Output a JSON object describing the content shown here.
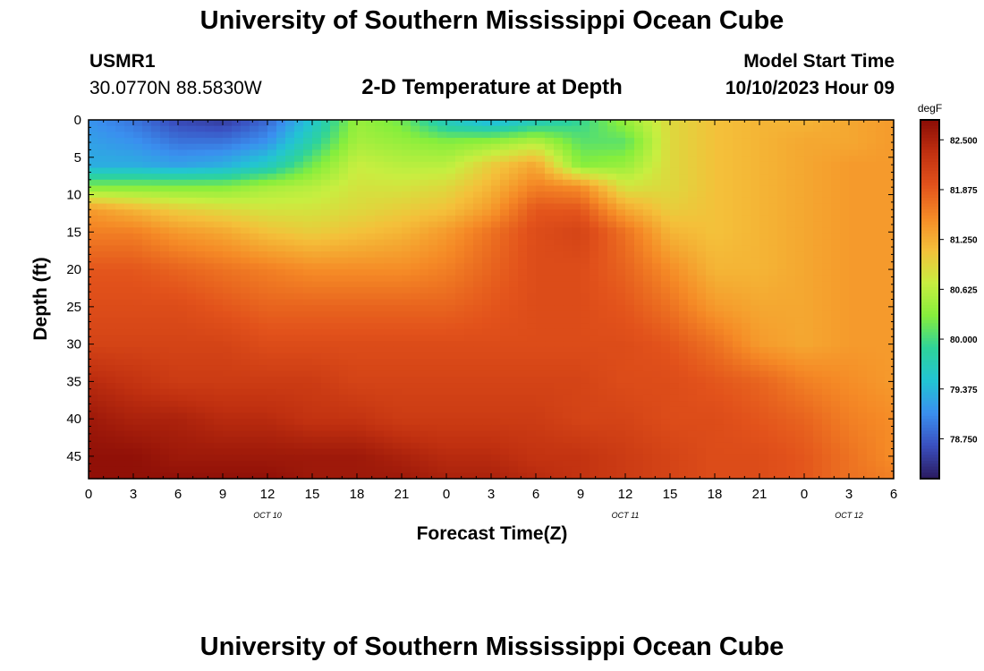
{
  "page": {
    "title": "University of Southern Mississippi Ocean Cube",
    "bottom_title": "University of Southern Mississippi Ocean Cube"
  },
  "header": {
    "station_id": "USMR1",
    "coordinates": "30.0770N  88.5830W",
    "subtitle": "2-D Temperature at Depth",
    "model_start_label": "Model Start Time",
    "model_start_value": "10/10/2023 Hour 09"
  },
  "chart_data": {
    "type": "heatmap",
    "title": "2-D Temperature at Depth",
    "xlabel": "Forecast Time(Z)",
    "ylabel": "Depth (ft)",
    "x_tick_labels": [
      "0",
      "3",
      "6",
      "9",
      "12",
      "15",
      "18",
      "21",
      "0",
      "3",
      "6",
      "9",
      "12",
      "15",
      "18",
      "21",
      "0",
      "3",
      "6"
    ],
    "x_hours": [
      0,
      3,
      6,
      9,
      12,
      15,
      18,
      21,
      24,
      27,
      30,
      33,
      36,
      39,
      42,
      45,
      48,
      51,
      54
    ],
    "date_labels": [
      {
        "text": "OCT 10",
        "hour": 12
      },
      {
        "text": "OCT 11",
        "hour": 36
      },
      {
        "text": "OCT 12",
        "hour": 51
      }
    ],
    "y_ticks": [
      0,
      5,
      10,
      15,
      20,
      25,
      30,
      35,
      40,
      45
    ],
    "ylim": [
      0,
      48
    ],
    "xlim": [
      0,
      54
    ],
    "colorbar": {
      "unit": "degF",
      "min": 78.25,
      "max": 82.75,
      "tick_values": [
        82.5,
        81.875,
        81.25,
        80.625,
        80.0,
        79.375,
        78.75
      ],
      "tick_labels": [
        "82.500",
        "81.875",
        "81.250",
        "80.625",
        "80.000",
        "79.375",
        "78.750"
      ],
      "colors": [
        "#2a1a5e",
        "#3a4fbf",
        "#3a8fef",
        "#22c4d4",
        "#2ed39a",
        "#86ee3c",
        "#c8ee40",
        "#f4c03a",
        "#f58a26",
        "#e2521b",
        "#c03010",
        "#8a0c06"
      ]
    },
    "temperature_grid": {
      "x_hours": [
        0,
        3,
        6,
        9,
        12,
        15,
        18,
        21,
        24,
        27,
        30,
        33,
        36,
        39,
        42,
        45,
        48,
        51,
        54
      ],
      "depths_ft": [
        0,
        3,
        6,
        9,
        12,
        15,
        20,
        25,
        30,
        35,
        40,
        45,
        48
      ],
      "values_degF": [
        [
          79.1,
          78.9,
          78.6,
          78.5,
          78.8,
          79.5,
          80.4,
          80.2,
          79.6,
          79.3,
          79.6,
          79.9,
          80.4,
          80.9,
          81.1,
          81.2,
          81.2,
          81.3,
          81.4
        ],
        [
          79.2,
          79.1,
          78.9,
          78.9,
          79.1,
          79.8,
          80.5,
          80.4,
          80.3,
          80.4,
          80.6,
          80.1,
          80.1,
          80.9,
          81.1,
          81.2,
          81.3,
          81.3,
          81.4
        ],
        [
          79.3,
          79.3,
          79.2,
          79.3,
          79.6,
          80.2,
          80.7,
          80.6,
          80.6,
          81.0,
          81.3,
          80.3,
          80.4,
          80.9,
          81.1,
          81.2,
          81.3,
          81.4,
          81.4
        ],
        [
          80.3,
          80.3,
          80.3,
          80.3,
          80.5,
          80.6,
          80.8,
          80.8,
          80.9,
          81.2,
          81.6,
          81.5,
          80.8,
          80.9,
          81.1,
          81.2,
          81.3,
          81.4,
          81.4
        ],
        [
          81.4,
          81.2,
          81.0,
          80.9,
          80.8,
          80.8,
          80.9,
          81.0,
          81.1,
          81.4,
          81.9,
          81.9,
          81.3,
          81.0,
          81.1,
          81.2,
          81.3,
          81.4,
          81.4
        ],
        [
          81.6,
          81.6,
          81.4,
          81.3,
          81.1,
          81.0,
          81.1,
          81.2,
          81.4,
          81.7,
          82.0,
          82.1,
          81.7,
          81.2,
          81.1,
          81.2,
          81.3,
          81.4,
          81.4
        ],
        [
          81.9,
          81.9,
          81.8,
          81.7,
          81.6,
          81.5,
          81.5,
          81.5,
          81.6,
          81.8,
          82.0,
          82.0,
          81.8,
          81.5,
          81.2,
          81.2,
          81.3,
          81.4,
          81.4
        ],
        [
          82.0,
          82.0,
          82.0,
          81.9,
          81.8,
          81.8,
          81.8,
          81.8,
          81.8,
          81.9,
          82.0,
          82.0,
          81.9,
          81.7,
          81.4,
          81.3,
          81.3,
          81.4,
          81.4
        ],
        [
          82.1,
          82.1,
          82.1,
          82.1,
          82.0,
          82.0,
          82.0,
          82.0,
          82.0,
          82.0,
          82.0,
          82.0,
          82.0,
          81.9,
          81.7,
          81.4,
          81.3,
          81.4,
          81.4
        ],
        [
          82.4,
          82.3,
          82.2,
          82.2,
          82.2,
          82.2,
          82.1,
          82.1,
          82.1,
          82.1,
          82.1,
          82.1,
          82.0,
          82.0,
          81.9,
          81.8,
          81.6,
          81.5,
          81.4
        ],
        [
          82.6,
          82.5,
          82.5,
          82.4,
          82.4,
          82.3,
          82.3,
          82.2,
          82.2,
          82.2,
          82.2,
          82.1,
          82.1,
          82.0,
          82.0,
          81.9,
          81.8,
          81.6,
          81.5
        ],
        [
          82.7,
          82.7,
          82.6,
          82.6,
          82.6,
          82.6,
          82.6,
          82.5,
          82.4,
          82.4,
          82.3,
          82.3,
          82.2,
          82.1,
          82.0,
          82.0,
          81.9,
          81.7,
          81.5
        ],
        [
          82.7,
          82.7,
          82.7,
          82.7,
          82.7,
          82.6,
          82.6,
          82.6,
          82.5,
          82.5,
          82.4,
          82.3,
          82.2,
          82.1,
          82.0,
          82.0,
          81.9,
          81.7,
          81.6
        ]
      ]
    }
  }
}
